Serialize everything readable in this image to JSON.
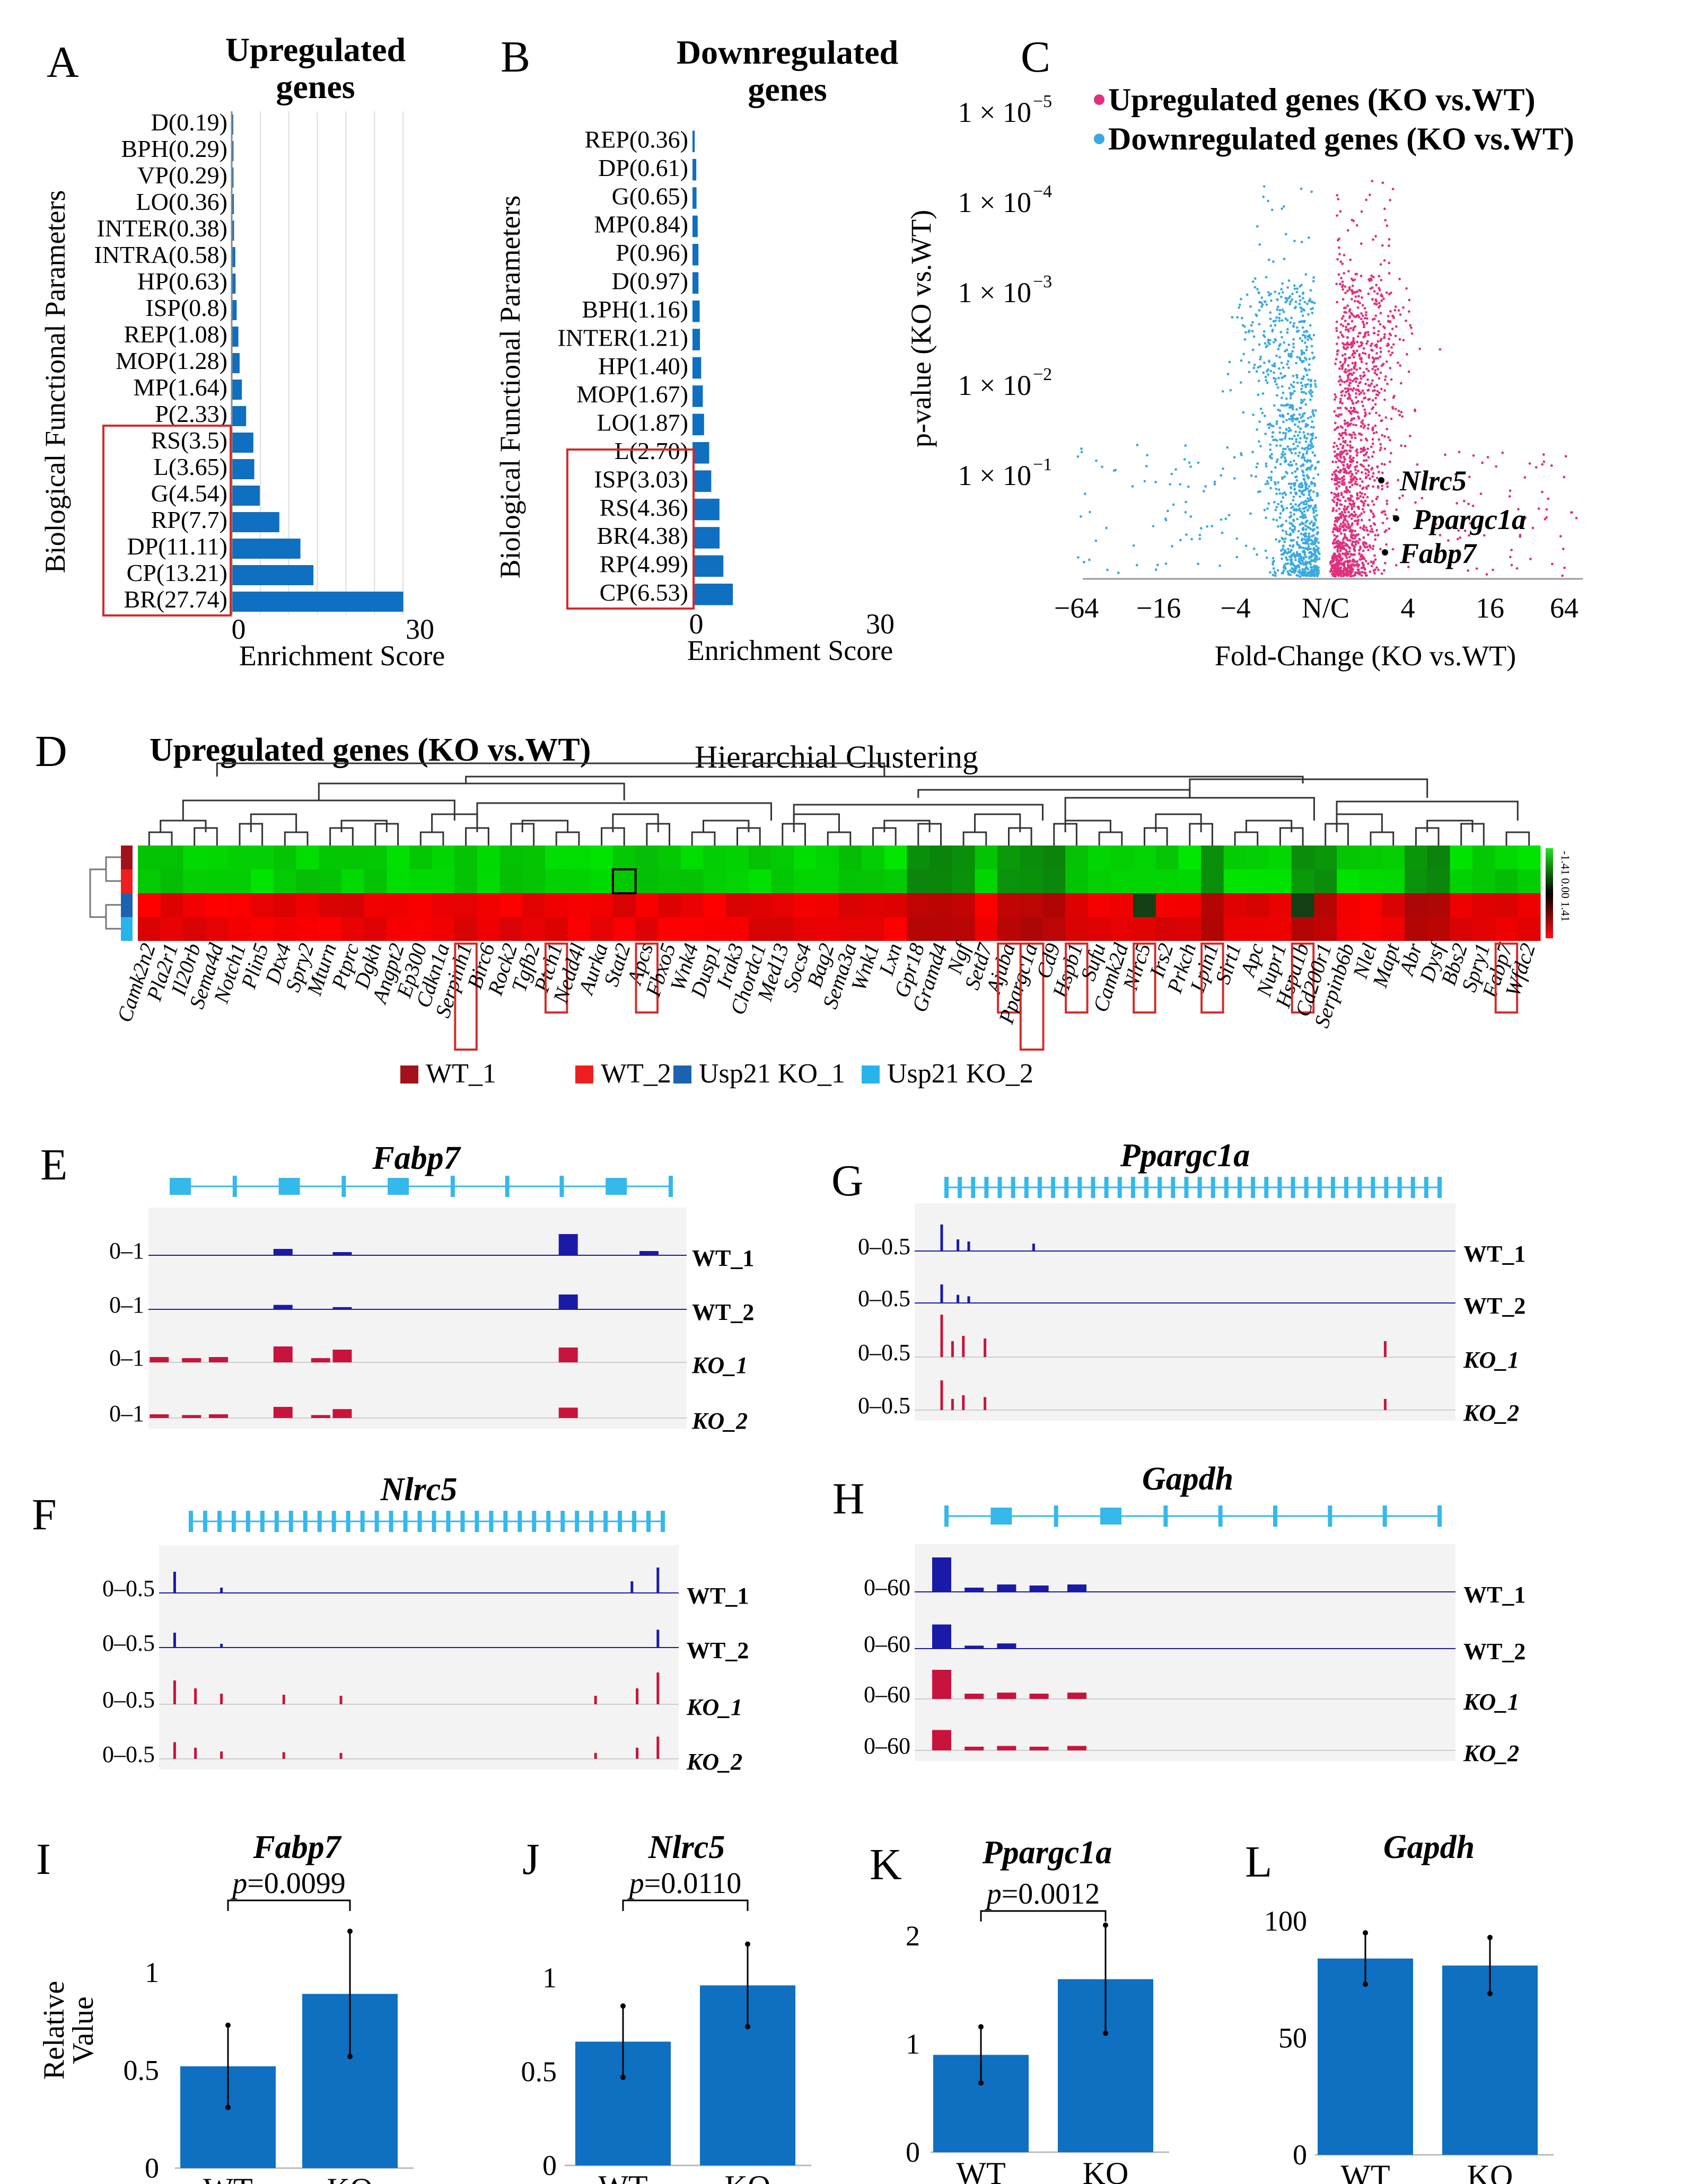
{
  "panel_labels": [
    "A",
    "B",
    "C",
    "D",
    "E",
    "F",
    "G",
    "H",
    "I",
    "J",
    "K",
    "L"
  ],
  "colors": {
    "bar": "#0f6fc0",
    "up": "#e0307e",
    "down": "#3aa9e0",
    "red_box": "#d42b2b",
    "wt_track": "#1a1aa8",
    "ko_track": "#c8143c",
    "gene_model": "#35b8ea",
    "heat_green": "#1fe61f",
    "heat_black": "#000000",
    "heat_red": "#ff1010"
  },
  "chart_data": [
    {
      "id": "A",
      "type": "bar",
      "orientation": "horizontal",
      "title": "Upregulated genes",
      "ylabel": "Biological Functional Parameters",
      "xlabel": "Enrichment Score",
      "xticks": [
        "0",
        "30"
      ],
      "xlim": [
        0,
        30
      ],
      "grid": true,
      "categories": [
        "D(0.19)",
        "BPH(0.29)",
        "VP(0.29)",
        "LO(0.36)",
        "INTER(0.38)",
        "INTRA(0.58)",
        "HP(0.63)",
        "ISP(0.8)",
        "REP(1.08)",
        "MOP(1.28)",
        "MP(1.64)",
        "P(2.33)",
        "RS(3.5)",
        "L(3.65)",
        "G(4.54)",
        "RP(7.7)",
        "DP(11.11)",
        "CP(13.21)",
        "BR(27.74)"
      ],
      "values": [
        0.19,
        0.29,
        0.29,
        0.36,
        0.38,
        0.58,
        0.63,
        0.8,
        1.08,
        1.28,
        1.64,
        2.33,
        3.5,
        3.65,
        4.54,
        7.7,
        11.11,
        13.21,
        27.74
      ],
      "highlighted": [
        "RS(3.5)",
        "L(3.65)",
        "G(4.54)",
        "RP(7.7)",
        "DP(11.11)",
        "CP(13.21)",
        "BR(27.74)"
      ]
    },
    {
      "id": "B",
      "type": "bar",
      "orientation": "horizontal",
      "title": "Downregulated genes",
      "ylabel": "Biological Functional Parameters",
      "xlabel": "Enrichment Score",
      "xticks": [
        "0",
        "30"
      ],
      "xlim": [
        0,
        30
      ],
      "grid": false,
      "categories": [
        "REP(0.36)",
        "DP(0.61)",
        "G(0.65)",
        "MP(0.84)",
        "P(0.96)",
        "D(0.97)",
        "BPH(1.16)",
        "INTER(1.21)",
        "HP(1.40)",
        "MOP(1.67)",
        "LO(1.87)",
        "L(2.70)",
        "ISP(3.03)",
        "RS(4.36)",
        "BR(4.38)",
        "RP(4.99)",
        "CP(6.53)"
      ],
      "values": [
        0.36,
        0.61,
        0.65,
        0.84,
        0.96,
        0.97,
        1.16,
        1.21,
        1.4,
        1.67,
        1.87,
        2.7,
        3.03,
        4.36,
        4.38,
        4.99,
        6.53
      ],
      "highlighted": [
        "ISP(3.03)",
        "RS(4.36)",
        "BR(4.38)",
        "RP(4.99)",
        "CP(6.53)"
      ]
    },
    {
      "id": "C",
      "type": "scatter",
      "title": "",
      "xlabel": "Fold-Change (KO vs.WT)",
      "ylabel": "p-value (KO vs.WT)",
      "xticks": [
        "−64",
        "−16",
        "−4",
        "N/C",
        "4",
        "16",
        "64"
      ],
      "yticks": [
        "1 × 10",
        "1 × 10",
        "1 × 10",
        "1 × 10",
        "1 × 10"
      ],
      "ytick_exponents": [
        "−5",
        "−4",
        "−3",
        "−2",
        "−1"
      ],
      "yscale": "log",
      "legend": [
        "Upregulated genes (KO vs.WT)",
        "Downregulated genes (KO vs.WT)"
      ],
      "legend_position": "top-right",
      "annotations": [
        "Nlrc5",
        "Ppargc1a",
        "Fabp7"
      ]
    },
    {
      "id": "D",
      "type": "heatmap",
      "title": "Upregulated genes (KO vs.WT)",
      "subtitle": "Hierarchial Clustering",
      "scale_ticks": [
        "-1.41",
        "0.00",
        "1.41"
      ],
      "samples": [
        "WT_1",
        "WT_2",
        "Usp21 KO_1",
        "Usp21 KO_2"
      ],
      "sample_colors": [
        "#a3121b",
        "#f01f1f",
        "#1b63b0",
        "#27b4ea"
      ],
      "genes": [
        "Camk2n2",
        "Pla2r1",
        "Il20rb",
        "Sema4d",
        "Notch1",
        "Plin5",
        "Dtx4",
        "Spry2",
        "Mturn",
        "Ptprc",
        "Dgkh",
        "Angpt2",
        "Ep300",
        "Cdkn1a",
        "Serpinh1",
        "Birc6",
        "Rock2",
        "Tgfb2",
        "Ptch1",
        "Nedd4l",
        "Aurka",
        "Stat2",
        "Apcs",
        "Fbxo5",
        "Wnk4",
        "Dusp1",
        "Irak3",
        "Chordc1",
        "Med13",
        "Socs4",
        "Bag2",
        "Sema3a",
        "Wnk1",
        "Lxn",
        "Gpr18",
        "Gramd4",
        "Ngf",
        "Setd7",
        "Ajuba",
        "Ppargc1a",
        "Cd9",
        "Hspb1",
        "Sufu",
        "Camk2d",
        "Nlrc5",
        "Irs2",
        "Prkch",
        "Lpin1",
        "Sirt1",
        "Apc",
        "Nupr1",
        "Hspa1b",
        "Cd200r1",
        "Serpinb6b",
        "Nlel",
        "Mapt",
        "Abr",
        "Dysf",
        "Bbs2",
        "Spry1",
        "Fabp7",
        "Wfdc2"
      ],
      "highlighted_genes": [
        "Serpinh1",
        "Ptch1",
        "Apcs",
        "Ajuba",
        "Ppargc1a",
        "Hspb1",
        "Nlrc5",
        "Lpin1",
        "Hspa1b",
        "Fabp7"
      ]
    },
    {
      "id": "E",
      "type": "area",
      "title": "Fabp7",
      "tracks": [
        {
          "name": "WT_1",
          "range": "0–1"
        },
        {
          "name": "WT_2",
          "range": "0–1"
        },
        {
          "name": "KO_1",
          "range": "0–1"
        },
        {
          "name": "KO_2",
          "range": "0–1"
        }
      ]
    },
    {
      "id": "F",
      "type": "area",
      "title": "Nlrc5",
      "tracks": [
        {
          "name": "WT_1",
          "range": "0–0.5"
        },
        {
          "name": "WT_2",
          "range": "0–0.5"
        },
        {
          "name": "KO_1",
          "range": "0–0.5"
        },
        {
          "name": "KO_2",
          "range": "0–0.5"
        }
      ]
    },
    {
      "id": "G",
      "type": "area",
      "title": "Ppargc1a",
      "tracks": [
        {
          "name": "WT_1",
          "range": "0–0.5"
        },
        {
          "name": "WT_2",
          "range": "0–0.5"
        },
        {
          "name": "KO_1",
          "range": "0–0.5"
        },
        {
          "name": "KO_2",
          "range": "0–0.5"
        }
      ]
    },
    {
      "id": "H",
      "type": "area",
      "title": "Gapdh",
      "tracks": [
        {
          "name": "WT_1",
          "range": "0–60"
        },
        {
          "name": "WT_2",
          "range": "0–60"
        },
        {
          "name": "KO_1",
          "range": "0–60"
        },
        {
          "name": "KO_2",
          "range": "0–60"
        }
      ]
    },
    {
      "id": "I",
      "type": "bar",
      "title": "Fabp7",
      "ylabel": "Relative Value",
      "pvalue": "=0.0099",
      "categories": [
        "WT",
        "KO"
      ],
      "values": [
        0.52,
        0.89
      ],
      "error": [
        0.21,
        0.32
      ],
      "yticks": [
        "0",
        "0.5",
        "1"
      ],
      "ylim": [
        0,
        1.3
      ]
    },
    {
      "id": "J",
      "type": "bar",
      "title": "Nlrc5",
      "pvalue": "=0.0110",
      "categories": [
        "WT",
        "KO"
      ],
      "values": [
        0.66,
        0.96
      ],
      "error": [
        0.19,
        0.22
      ],
      "yticks": [
        "0",
        "0.5",
        "1"
      ],
      "ylim": [
        0,
        1.3
      ]
    },
    {
      "id": "K",
      "type": "bar",
      "title": "Ppargc1a",
      "pvalue": "=0.0012",
      "categories": [
        "WT",
        "KO"
      ],
      "values": [
        0.9,
        1.6
      ],
      "error": [
        0.26,
        0.5
      ],
      "yticks": [
        "0",
        "1",
        "2"
      ],
      "ylim": [
        0,
        2.5
      ]
    },
    {
      "id": "L",
      "type": "bar",
      "title": "Gapdh",
      "categories": [
        "WT",
        "KO"
      ],
      "values": [
        84,
        81
      ],
      "error": [
        11,
        12
      ],
      "yticks": [
        "0",
        "50",
        "100"
      ],
      "ylim": [
        0,
        110
      ]
    }
  ]
}
